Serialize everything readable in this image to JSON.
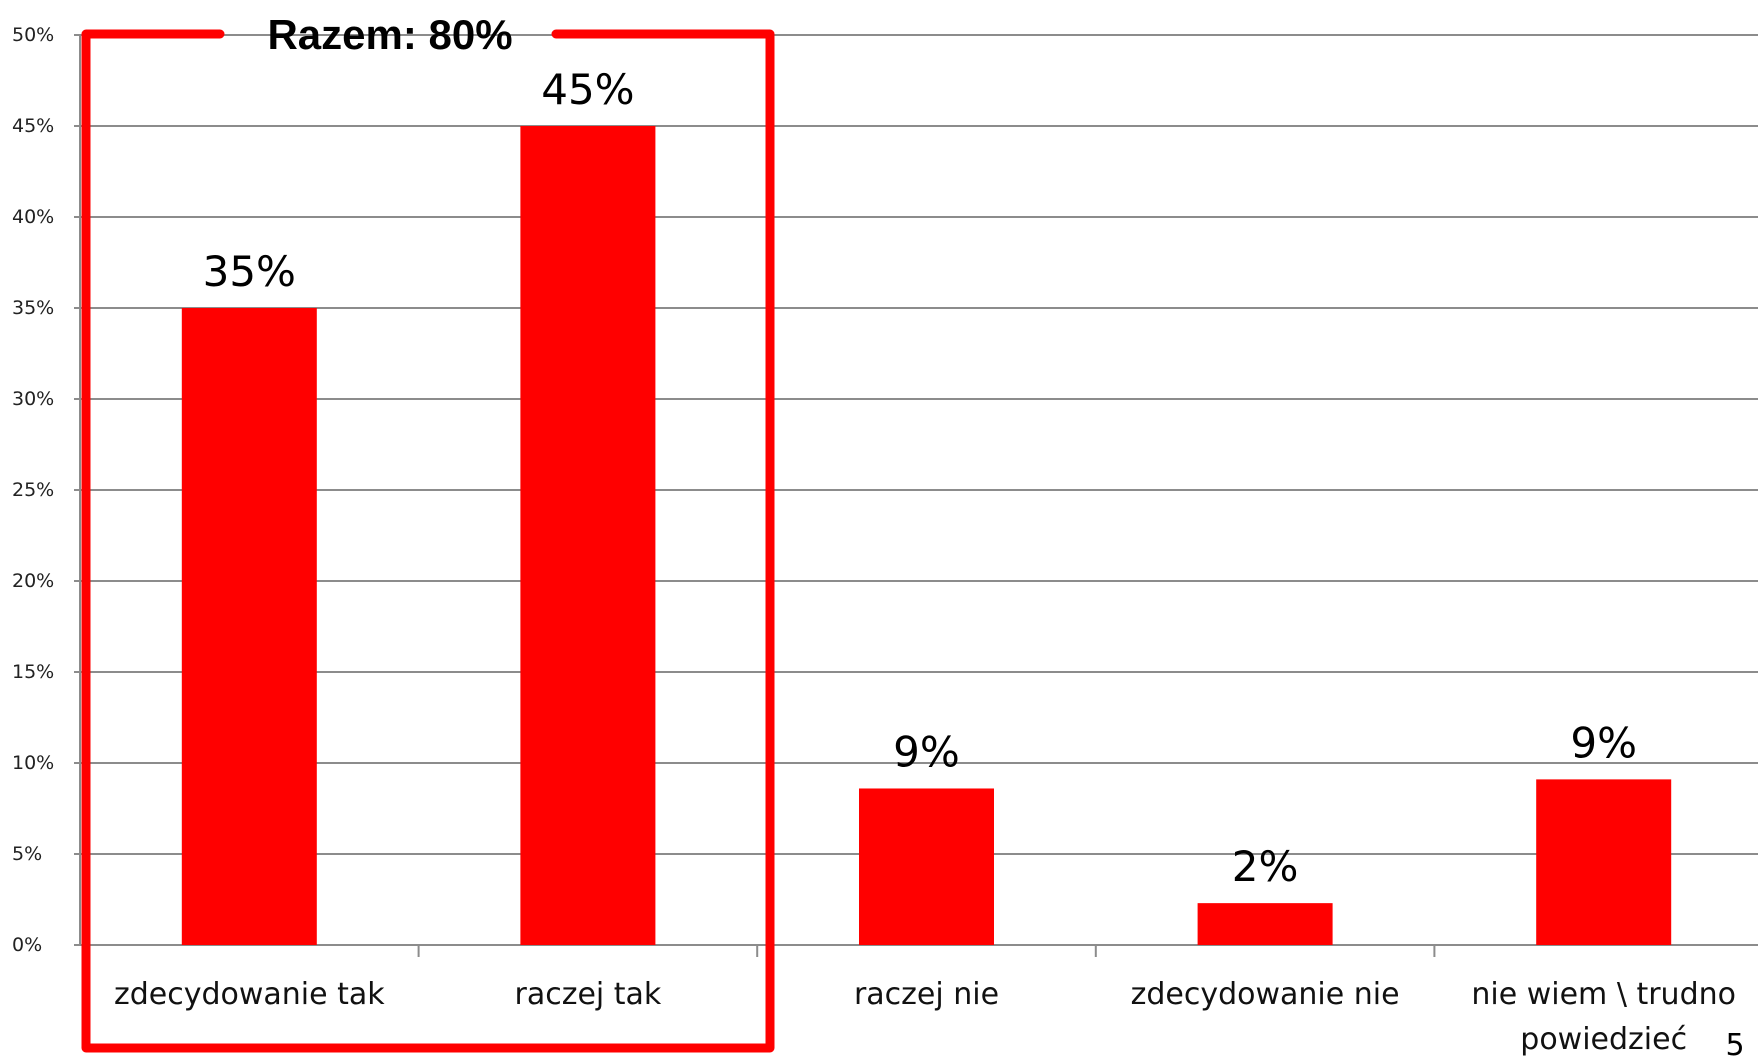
{
  "chart_data": {
    "type": "bar",
    "categories": [
      "zdecydowanie tak",
      "raczej tak",
      "raczej nie",
      "zdecydowanie nie",
      "nie wiem \\ trudno powiedzieć"
    ],
    "category_lines": [
      [
        "zdecydowanie tak"
      ],
      [
        "raczej tak"
      ],
      [
        "raczej nie"
      ],
      [
        "zdecydowanie nie"
      ],
      [
        "nie wiem \\ trudno",
        "powiedzieć"
      ]
    ],
    "values": [
      35,
      45,
      8.6,
      2.3,
      9.1
    ],
    "data_labels": [
      "35%",
      "45%",
      "9%",
      "2%",
      "9%"
    ],
    "ylim": [
      0,
      50
    ],
    "yticks": [
      0,
      5,
      10,
      15,
      20,
      25,
      30,
      35,
      40,
      45,
      50
    ],
    "ytick_labels": [
      "0%",
      "5%",
      "10%",
      "15%",
      "20%",
      "25%",
      "30%",
      "35%",
      "40%",
      "45%",
      "50%"
    ],
    "grid": true,
    "bar_color": "#ff0000"
  },
  "annotation": {
    "label": "Razem: 80%",
    "color": "#ff0000"
  },
  "page_number": "5"
}
